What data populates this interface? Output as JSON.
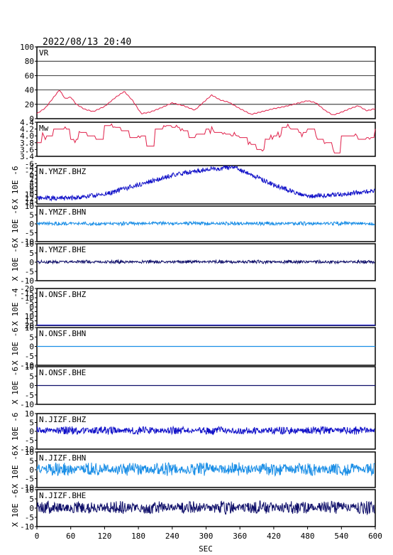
{
  "header": {
    "timestamp": "2022/08/13 20:40"
  },
  "x_axis": {
    "label": "SEC",
    "range": [
      0,
      600
    ],
    "ticks": [
      0,
      60,
      120,
      180,
      240,
      300,
      360,
      420,
      480,
      540,
      600
    ]
  },
  "colors": {
    "frame": "#000000",
    "vr": "#e0204a",
    "mw": "#e0204a",
    "bhz": "#1010c8",
    "bhn": "#1a8ee6",
    "bhe": "#10106a"
  },
  "chart_data": [
    {
      "type": "line",
      "label": "VR",
      "ylim": [
        0,
        100
      ],
      "yticks": [
        0,
        20,
        40,
        60,
        80,
        100
      ],
      "ytick_labels": [
        "0",
        "20",
        "40",
        "60",
        "80",
        "100"
      ],
      "grid": true,
      "color": "#e0204a",
      "kind": "smooth",
      "x": [
        0,
        15,
        30,
        40,
        50,
        60,
        70,
        85,
        100,
        120,
        140,
        155,
        170,
        185,
        200,
        220,
        240,
        260,
        280,
        300,
        310,
        325,
        340,
        360,
        380,
        400,
        420,
        440,
        460,
        480,
        495,
        510,
        525,
        540,
        555,
        570,
        585,
        600
      ],
      "y": [
        7,
        15,
        30,
        40,
        28,
        30,
        20,
        13,
        10,
        17,
        30,
        38,
        25,
        7,
        9,
        15,
        22,
        18,
        12,
        26,
        33,
        26,
        23,
        14,
        6,
        10,
        14,
        17,
        21,
        25,
        22,
        12,
        5,
        9,
        14,
        18,
        11,
        14
      ]
    },
    {
      "type": "line",
      "label": "Mw",
      "ylim": [
        3.4,
        4.4
      ],
      "yticks": [
        3.4,
        3.6,
        3.8,
        4.0,
        4.2,
        4.4
      ],
      "ytick_labels": [
        "3.4",
        "3.6",
        "3.8",
        "4.0",
        "4.2",
        "4.4"
      ],
      "grid": false,
      "color": "#e0204a",
      "kind": "step",
      "x": [
        0,
        10,
        30,
        60,
        75,
        90,
        105,
        120,
        135,
        150,
        165,
        180,
        195,
        210,
        225,
        240,
        255,
        270,
        285,
        300,
        315,
        330,
        345,
        360,
        375,
        390,
        405,
        420,
        435,
        450,
        465,
        480,
        495,
        510,
        525,
        540,
        555,
        570,
        585,
        600
      ],
      "y": [
        3.8,
        4.0,
        4.2,
        3.9,
        4.1,
        4.0,
        3.9,
        4.3,
        4.25,
        4.15,
        3.95,
        4.0,
        3.7,
        4.2,
        4.3,
        4.25,
        4.15,
        3.95,
        4.05,
        4.2,
        4.1,
        4.05,
        4.0,
        3.95,
        3.75,
        3.6,
        3.9,
        4.0,
        4.25,
        4.2,
        4.1,
        4.2,
        3.9,
        3.8,
        3.5,
        4.0,
        4.0,
        3.9,
        3.95,
        4.2
      ]
    },
    {
      "type": "line",
      "label": "N.YMZF.BHZ",
      "ylabel": "X 10E -6",
      "ylim": [
        -5,
        15
      ],
      "y_inverted": true,
      "yticks": [
        -6,
        -4,
        -2,
        0,
        2,
        4,
        6,
        8,
        10,
        12,
        14
      ],
      "ytick_labels": [
        "-6",
        "-4",
        "-2",
        "0",
        "2",
        "4",
        "6",
        "8",
        "10",
        "12",
        "14"
      ],
      "grid": false,
      "color": "#1010c8",
      "kind": "trend_noise",
      "x": [
        0,
        60,
        120,
        180,
        240,
        300,
        345,
        360,
        420,
        480,
        540,
        600
      ],
      "y": [
        12,
        12,
        10,
        5,
        0,
        -3,
        -4,
        -3,
        5,
        11,
        10,
        8
      ],
      "noise_amplitude": 1.2
    },
    {
      "type": "line",
      "label": "N.YMZF.BHN",
      "ylabel": "X 10E -6",
      "ylim": [
        -10,
        10
      ],
      "yticks": [
        -10,
        -5,
        0,
        5,
        10
      ],
      "ytick_labels": [
        "-10",
        "-5",
        "0",
        "5",
        "10"
      ],
      "grid": false,
      "color": "#1a8ee6",
      "kind": "noise",
      "baseline": 0.2,
      "noise_amplitude": 0.9
    },
    {
      "type": "line",
      "label": "N.YMZF.BHE",
      "ylabel": "X 10E -6",
      "ylim": [
        -10,
        10
      ],
      "yticks": [
        -10,
        -5,
        0,
        5,
        10
      ],
      "ytick_labels": [
        "-10",
        "-5",
        "0",
        "5",
        "10"
      ],
      "grid": false,
      "color": "#10106a",
      "kind": "noise",
      "baseline": 0.2,
      "noise_amplitude": 0.8
    },
    {
      "type": "line",
      "label": "N.ONSF.BHZ",
      "ylabel": "X 10E -4",
      "ylim": [
        -20,
        20
      ],
      "y_inverted": true,
      "yticks": [
        -20,
        -15,
        -10,
        -5,
        0,
        5,
        10,
        15,
        20
      ],
      "ytick_labels": [
        "-20",
        "-15",
        "-10",
        "-5",
        "0",
        "5",
        "10",
        "15",
        "20"
      ],
      "grid": false,
      "color": "#1010c8",
      "kind": "flat",
      "baseline": 19.8
    },
    {
      "type": "line",
      "label": "N.ONSF.BHN",
      "ylabel": "X 10E -6",
      "ylim": [
        -10,
        10
      ],
      "yticks": [
        -10,
        -5,
        0,
        5,
        10
      ],
      "ytick_labels": [
        "-10",
        "-5",
        "0",
        "5",
        "10"
      ],
      "grid": false,
      "color": "#1a8ee6",
      "kind": "flat",
      "baseline": 0
    },
    {
      "type": "line",
      "label": "N.ONSF.BHE",
      "ylabel": "X 10E -6",
      "ylim": [
        -10,
        10
      ],
      "yticks": [
        -10,
        -5,
        0,
        5,
        10
      ],
      "ytick_labels": [
        "-10",
        "-5",
        "0",
        "5",
        "10"
      ],
      "grid": false,
      "color": "#10106a",
      "kind": "flat",
      "baseline": 0
    },
    {
      "type": "line",
      "label": "N.JIZF.BHZ",
      "ylabel": "X 10E -6",
      "ylim": [
        -10,
        10
      ],
      "yticks": [
        -10,
        -5,
        0,
        5,
        10
      ],
      "ytick_labels": [
        "-10",
        "-5",
        "0",
        "5",
        "10"
      ],
      "grid": false,
      "color": "#1010c8",
      "kind": "noise",
      "baseline": 0.5,
      "noise_amplitude": 2.0
    },
    {
      "type": "line",
      "label": "N.JIZF.BHN",
      "ylabel": "X 10E -6",
      "ylim": [
        -10,
        10
      ],
      "yticks": [
        -10,
        -5,
        0,
        5,
        10
      ],
      "ytick_labels": [
        "-10",
        "-5",
        "0",
        "5",
        "10"
      ],
      "grid": false,
      "color": "#1a8ee6",
      "kind": "noise",
      "baseline": 0.3,
      "noise_amplitude": 3.2
    },
    {
      "type": "line",
      "label": "N.JIZF.BHE",
      "ylabel": "X 10E -6",
      "ylim": [
        -10,
        10
      ],
      "yticks": [
        -10,
        -5,
        0,
        5,
        10
      ],
      "ytick_labels": [
        "-10",
        "-5",
        "0",
        "5",
        "10"
      ],
      "grid": false,
      "color": "#10106a",
      "kind": "noise",
      "baseline": 0.3,
      "noise_amplitude": 3.0
    }
  ]
}
